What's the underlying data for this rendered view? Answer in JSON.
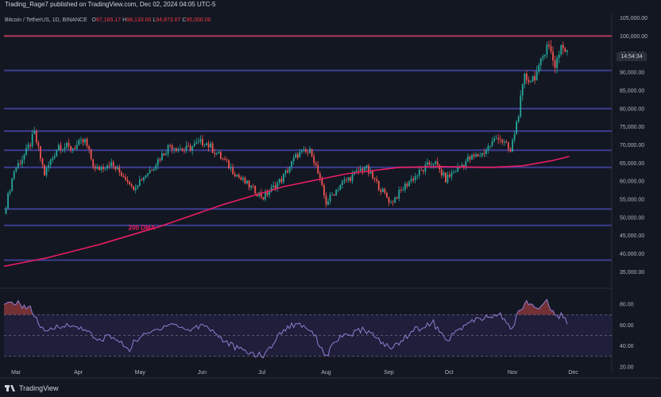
{
  "header": {
    "publisher_line": "Trading_Rage7 published on TradingView.com, Dec 02, 2024 04:05 UTC-5",
    "symbol": "Bitcoin / TetherUS, 1D, BINANCE",
    "ohlc": {
      "o_label": "O",
      "o": "97,185.17",
      "h_label": "H",
      "h": "98,133.00",
      "l_label": "L",
      "l": "94,873.07",
      "c_label": "C",
      "c": "95,000.00"
    }
  },
  "countdown": "14:54:34",
  "footer": {
    "brand": "TradingView"
  },
  "colors": {
    "up": "#26a69a",
    "down": "#ef5350",
    "ma": "#e91e63",
    "level": "#3d3e8f",
    "resistance": "#b03a5b",
    "rsi_line": "#8f7fd1",
    "rsi_fill": "#2a2451"
  },
  "chart_data": {
    "type": "candlestick",
    "price_axis": {
      "ylim": [
        32000,
        106000
      ],
      "ticks": [
        "105,000.00",
        "100,000.00",
        "95,000.00",
        "90,000.00",
        "85,000.00",
        "80,000.00",
        "75,000.00",
        "70,000.00",
        "65,000.00",
        "60,000.00",
        "55,000.00",
        "50,000.00",
        "45,000.00",
        "40,000.00",
        "35,000.00"
      ],
      "tick_values": [
        105000,
        100000,
        95000,
        90000,
        85000,
        80000,
        75000,
        70000,
        65000,
        60000,
        55000,
        50000,
        45000,
        40000,
        35000
      ]
    },
    "x_axis": {
      "labels": [
        "Mar",
        "Apr",
        "May",
        "Jun",
        "Jul",
        "Aug",
        "Sep",
        "Oct",
        "Nov",
        "Dec"
      ],
      "label_dates": [
        "2024-03-01",
        "2024-04-01",
        "2024-05-01",
        "2024-06-01",
        "2024-07-01",
        "2024-08-01",
        "2024-09-01",
        "2024-10-01",
        "2024-11-01",
        "2024-12-01"
      ],
      "start_date": "2024-02-28",
      "end_date": "2024-12-24"
    },
    "horizontal_levels": [
      {
        "price": 100000,
        "role": "resistance"
      },
      {
        "price": 90500,
        "role": "level"
      },
      {
        "price": 80000,
        "role": "level"
      },
      {
        "price": 73800,
        "role": "level"
      },
      {
        "price": 68500,
        "role": "level"
      },
      {
        "price": 63800,
        "role": "level"
      },
      {
        "price": 52300,
        "role": "level"
      },
      {
        "price": 47800,
        "role": "level"
      },
      {
        "price": 38200,
        "role": "level"
      }
    ],
    "ma_label": "200 DMA",
    "ma_label_anchor": {
      "date": "2024-05-01",
      "price": 47000
    },
    "moving_average": [
      {
        "date": "2024-02-28",
        "price": 36500
      },
      {
        "date": "2024-03-20",
        "price": 38800
      },
      {
        "date": "2024-04-15",
        "price": 42500
      },
      {
        "date": "2024-05-15",
        "price": 47500
      },
      {
        "date": "2024-06-15",
        "price": 53500
      },
      {
        "date": "2024-07-15",
        "price": 58500
      },
      {
        "date": "2024-08-15",
        "price": 62000
      },
      {
        "date": "2024-09-10",
        "price": 63800
      },
      {
        "date": "2024-10-01",
        "price": 64000
      },
      {
        "date": "2024-10-25",
        "price": 63800
      },
      {
        "date": "2024-11-10",
        "price": 64200
      },
      {
        "date": "2024-11-25",
        "price": 65700
      },
      {
        "date": "2024-12-03",
        "price": 66800
      }
    ],
    "close_path": [
      {
        "date": "2024-02-28",
        "price": 51000
      },
      {
        "date": "2024-03-04",
        "price": 63000
      },
      {
        "date": "2024-03-10",
        "price": 68000
      },
      {
        "date": "2024-03-14",
        "price": 73000
      },
      {
        "date": "2024-03-19",
        "price": 62000
      },
      {
        "date": "2024-03-26",
        "price": 70000
      },
      {
        "date": "2024-04-01",
        "price": 69000
      },
      {
        "date": "2024-04-08",
        "price": 71000
      },
      {
        "date": "2024-04-13",
        "price": 63000
      },
      {
        "date": "2024-04-20",
        "price": 65000
      },
      {
        "date": "2024-04-30",
        "price": 60000
      },
      {
        "date": "2024-05-01",
        "price": 58000
      },
      {
        "date": "2024-05-10",
        "price": 63000
      },
      {
        "date": "2024-05-20",
        "price": 70000
      },
      {
        "date": "2024-05-27",
        "price": 68500
      },
      {
        "date": "2024-06-06",
        "price": 71000
      },
      {
        "date": "2024-06-15",
        "price": 66000
      },
      {
        "date": "2024-06-24",
        "price": 60500
      },
      {
        "date": "2024-07-05",
        "price": 55500
      },
      {
        "date": "2024-07-14",
        "price": 60500
      },
      {
        "date": "2024-07-22",
        "price": 67500
      },
      {
        "date": "2024-07-29",
        "price": 68000
      },
      {
        "date": "2024-08-05",
        "price": 54000
      },
      {
        "date": "2024-08-12",
        "price": 59000
      },
      {
        "date": "2024-08-24",
        "price": 64000
      },
      {
        "date": "2024-09-06",
        "price": 54000
      },
      {
        "date": "2024-09-15",
        "price": 60000
      },
      {
        "date": "2024-09-27",
        "price": 65500
      },
      {
        "date": "2024-10-03",
        "price": 60500
      },
      {
        "date": "2024-10-14",
        "price": 66000
      },
      {
        "date": "2024-10-21",
        "price": 67500
      },
      {
        "date": "2024-10-29",
        "price": 72500
      },
      {
        "date": "2024-11-04",
        "price": 68000
      },
      {
        "date": "2024-11-07",
        "price": 76000
      },
      {
        "date": "2024-11-11",
        "price": 88500
      },
      {
        "date": "2024-11-14",
        "price": 88000
      },
      {
        "date": "2024-11-18",
        "price": 90500
      },
      {
        "date": "2024-11-22",
        "price": 98500
      },
      {
        "date": "2024-11-26",
        "price": 92000
      },
      {
        "date": "2024-11-29",
        "price": 97500
      },
      {
        "date": "2024-12-02",
        "price": 95000
      }
    ],
    "rsi": {
      "ylim": [
        20,
        90
      ],
      "ticks": [
        "80.00",
        "60.00",
        "40.00",
        "20.00"
      ],
      "tick_values": [
        80,
        60,
        40,
        20
      ],
      "band": [
        30,
        70
      ],
      "series": [
        {
          "date": "2024-02-28",
          "value": 78
        },
        {
          "date": "2024-03-04",
          "value": 82
        },
        {
          "date": "2024-03-12",
          "value": 76
        },
        {
          "date": "2024-03-19",
          "value": 52
        },
        {
          "date": "2024-03-26",
          "value": 60
        },
        {
          "date": "2024-04-08",
          "value": 57
        },
        {
          "date": "2024-04-14",
          "value": 44
        },
        {
          "date": "2024-04-20",
          "value": 50
        },
        {
          "date": "2024-04-30",
          "value": 37
        },
        {
          "date": "2024-05-03",
          "value": 46
        },
        {
          "date": "2024-05-20",
          "value": 62
        },
        {
          "date": "2024-05-29",
          "value": 55
        },
        {
          "date": "2024-06-06",
          "value": 61
        },
        {
          "date": "2024-06-17",
          "value": 43
        },
        {
          "date": "2024-06-24",
          "value": 36
        },
        {
          "date": "2024-07-05",
          "value": 30
        },
        {
          "date": "2024-07-15",
          "value": 56
        },
        {
          "date": "2024-07-22",
          "value": 62
        },
        {
          "date": "2024-07-29",
          "value": 55
        },
        {
          "date": "2024-08-05",
          "value": 30
        },
        {
          "date": "2024-08-10",
          "value": 46
        },
        {
          "date": "2024-08-24",
          "value": 56
        },
        {
          "date": "2024-09-06",
          "value": 37
        },
        {
          "date": "2024-09-17",
          "value": 55
        },
        {
          "date": "2024-09-27",
          "value": 62
        },
        {
          "date": "2024-10-03",
          "value": 45
        },
        {
          "date": "2024-10-14",
          "value": 62
        },
        {
          "date": "2024-10-21",
          "value": 66
        },
        {
          "date": "2024-10-30",
          "value": 70
        },
        {
          "date": "2024-11-04",
          "value": 56
        },
        {
          "date": "2024-11-11",
          "value": 82
        },
        {
          "date": "2024-11-14",
          "value": 80
        },
        {
          "date": "2024-11-18",
          "value": 76
        },
        {
          "date": "2024-11-22",
          "value": 84
        },
        {
          "date": "2024-11-26",
          "value": 68
        },
        {
          "date": "2024-11-30",
          "value": 70
        },
        {
          "date": "2024-12-02",
          "value": 62
        }
      ]
    }
  }
}
